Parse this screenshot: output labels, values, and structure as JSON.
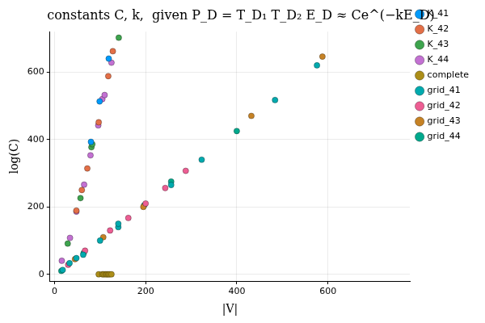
{
  "chart_data": {
    "type": "scatter",
    "title": "constants C, k,  given P_D = T_D₁ T_D₂ E_D ≈ Ce^(−kE_D)",
    "x_label": "|V|",
    "y_label": "log(C)",
    "xlim": [
      -10,
      780
    ],
    "xticks": [
      0,
      200,
      400,
      600
    ],
    "ylim": [
      -20,
      720
    ],
    "yticks": [
      0,
      200,
      400,
      600
    ],
    "grid": true,
    "legend": "right",
    "marker": "circle",
    "series": [
      {
        "name": "K_41",
        "color": "#009AFA",
        "x": [
          80,
          99,
          119
        ],
        "values": [
          393,
          513,
          640
        ]
      },
      {
        "name": "K_42",
        "color": "#E36F47",
        "x": [
          48,
          60,
          72,
          97,
          118,
          128
        ],
        "values": [
          189,
          250,
          314,
          451,
          588,
          662
        ]
      },
      {
        "name": "K_43",
        "color": "#3EA44E",
        "x": [
          29,
          57,
          81,
          83,
          141
        ],
        "values": [
          91,
          226,
          377,
          386,
          702
        ]
      },
      {
        "name": "K_44",
        "color": "#C371D2",
        "x": [
          16,
          34,
          48,
          65,
          79,
          96,
          105,
          110,
          125
        ],
        "values": [
          40,
          108,
          186,
          266,
          353,
          442,
          520,
          532,
          628
        ]
      },
      {
        "name": "complete",
        "color": "#AC8E18",
        "x": [
          97,
          105,
          108,
          112,
          115,
          118,
          121,
          125
        ],
        "values": [
          0,
          0,
          0,
          0,
          0,
          0,
          0,
          0
        ]
      },
      {
        "name": "grid_41",
        "color": "#00AAAE",
        "x": [
          18,
          33,
          48,
          63,
          100,
          140,
          140,
          256,
          323,
          484,
          576
        ],
        "values": [
          13,
          33,
          48,
          58,
          100,
          140,
          150,
          265,
          340,
          517,
          620
        ]
      },
      {
        "name": "grid_42",
        "color": "#ED5E93",
        "x": [
          30,
          67,
          122,
          162,
          200,
          243,
          288
        ],
        "values": [
          28,
          70,
          130,
          167,
          210,
          256,
          307
        ]
      },
      {
        "name": "grid_43",
        "color": "#C68225",
        "x": [
          45,
          107,
          195,
          432,
          588
        ],
        "values": [
          45,
          110,
          200,
          470,
          646
        ]
      },
      {
        "name": "grid_44",
        "color": "#00A98D",
        "x": [
          15,
          64,
          197,
          256,
          400
        ],
        "values": [
          10,
          63,
          205,
          275,
          425
        ]
      }
    ]
  }
}
